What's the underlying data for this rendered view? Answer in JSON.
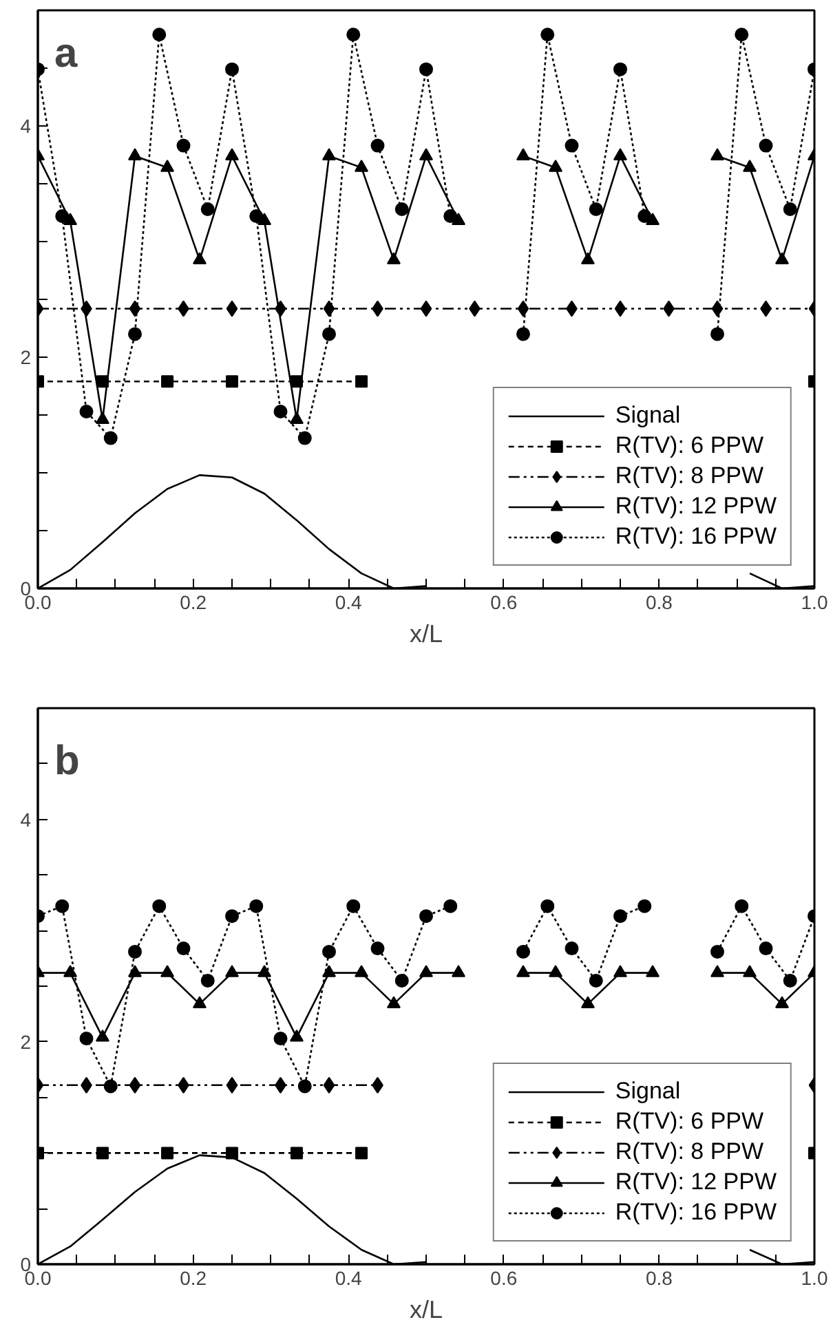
{
  "chart_data": [
    {
      "type": "line",
      "annotations": [
        "a"
      ],
      "xlabel": "x/L",
      "xlim": [
        0,
        1
      ],
      "ylim": [
        0,
        5
      ],
      "xticks": [
        {
          "value": 0.0,
          "label": "0.0"
        },
        {
          "value": 0.05,
          "label": null
        },
        {
          "value": 0.1,
          "label": null
        },
        {
          "value": 0.15,
          "label": null
        },
        {
          "value": 0.2,
          "label": "0.2"
        },
        {
          "value": 0.25,
          "label": null
        },
        {
          "value": 0.3,
          "label": null
        },
        {
          "value": 0.35,
          "label": null
        },
        {
          "value": 0.4,
          "label": "0.4"
        },
        {
          "value": 0.45,
          "label": null
        },
        {
          "value": 0.5,
          "label": null
        },
        {
          "value": 0.55,
          "label": null
        },
        {
          "value": 0.6,
          "label": "0.6"
        },
        {
          "value": 0.65,
          "label": null
        },
        {
          "value": 0.7,
          "label": null
        },
        {
          "value": 0.75,
          "label": null
        },
        {
          "value": 0.8,
          "label": "0.8"
        },
        {
          "value": 0.85,
          "label": null
        },
        {
          "value": 0.9,
          "label": null
        },
        {
          "value": 0.95,
          "label": null
        },
        {
          "value": 1.0,
          "label": "1.0"
        }
      ],
      "yticks": [
        0,
        {
          "value": 0.5,
          "label": null
        },
        {
          "value": 1,
          "label": null
        },
        {
          "value": 1.5,
          "label": null
        },
        2,
        {
          "value": 2.5,
          "label": null
        },
        {
          "value": 3,
          "label": null
        },
        {
          "value": 3.5,
          "label": null
        },
        4,
        {
          "value": 4.5,
          "label": null
        }
      ],
      "grid": false,
      "legend": "bottom right",
      "series": [
        {
          "name": "Signal",
          "color": "#000000",
          "line_style": "solid",
          "marker": "none",
          "x": [
            0,
            0.0417,
            0.0833,
            0.125,
            0.1667,
            0.2083,
            0.25,
            0.2917,
            0.3333,
            0.375,
            0.4167,
            0.4583,
            0.5,
            0.5417,
            0.5833,
            0.625,
            0.6667,
            0.7083,
            0.75,
            0.7917,
            0.8333,
            0.875,
            0.9167,
            0.9583,
            1
          ],
          "values": [
            0,
            0.16,
            0.4,
            0.65,
            0.86,
            0.98,
            0.96,
            0.82,
            0.59,
            0.34,
            0.13,
            0.0,
            0.02,
            null,
            null,
            null,
            null,
            null,
            null,
            null,
            null,
            null,
            0.13,
            0.0,
            0.02
          ]
        },
        {
          "name": "R(TV): 6 PPW",
          "color": "#000000",
          "line_style": "dashed",
          "marker": "square",
          "x": [
            0,
            0.0833,
            0.1667,
            0.25,
            0.3333,
            0.4167,
            0.5,
            0.5833,
            0.6667,
            0.75,
            0.8333,
            0.9167,
            1
          ],
          "values": [
            1.79,
            1.79,
            1.79,
            1.79,
            1.79,
            1.79,
            null,
            null,
            null,
            null,
            null,
            null,
            1.79
          ]
        },
        {
          "name": "R(TV): 8 PPW",
          "color": "#000000",
          "line_style": "dashdot",
          "marker": "diamond",
          "x": [
            0,
            0.0625,
            0.125,
            0.1875,
            0.25,
            0.3125,
            0.375,
            0.4375,
            0.5,
            0.5625,
            0.625,
            0.6875,
            0.75,
            0.8125,
            0.875,
            0.9375,
            1
          ],
          "values": [
            2.42,
            2.42,
            2.42,
            2.42,
            2.42,
            2.42,
            2.42,
            2.42,
            2.42,
            2.42,
            2.42,
            2.42,
            2.42,
            2.42,
            2.42,
            2.42,
            2.42
          ]
        },
        {
          "name": "R(TV): 12 PPW",
          "color": "#000000",
          "line_style": "solid",
          "marker": "triangle",
          "x": [
            0,
            0.0417,
            0.0833,
            0.125,
            0.1667,
            0.2083,
            0.25,
            0.2917,
            0.3333,
            0.375,
            0.4167,
            0.4583,
            0.5,
            0.5417,
            0.5833,
            0.625,
            0.6667,
            0.7083,
            0.75,
            0.7917,
            0.8333,
            0.875,
            0.9167,
            0.9583,
            1
          ],
          "values": [
            3.74,
            3.18,
            1.46,
            3.74,
            3.64,
            2.84,
            3.74,
            3.18,
            1.46,
            3.74,
            3.64,
            2.84,
            3.74,
            3.18,
            null,
            3.74,
            3.64,
            2.84,
            3.74,
            3.18,
            null,
            3.74,
            3.64,
            2.84,
            3.74
          ]
        },
        {
          "name": "R(TV): 16 PPW",
          "color": "#000000",
          "line_style": "dotted",
          "marker": "circle",
          "x": [
            0,
            0.03125,
            0.0625,
            0.09375,
            0.125,
            0.15625,
            0.1875,
            0.21875,
            0.25,
            0.28125,
            0.3125,
            0.34375,
            0.375,
            0.40625,
            0.4375,
            0.46875,
            0.5,
            0.53125,
            0.5625,
            0.59375,
            0.625,
            0.65625,
            0.6875,
            0.71875,
            0.75,
            0.78125,
            0.8125,
            0.84375,
            0.875,
            0.90625,
            0.9375,
            0.96875,
            1
          ],
          "values": [
            4.49,
            3.22,
            1.53,
            1.3,
            2.2,
            4.79,
            3.83,
            3.28,
            4.49,
            3.22,
            1.53,
            1.3,
            2.2,
            4.79,
            3.83,
            3.28,
            4.49,
            3.22,
            null,
            null,
            2.2,
            4.79,
            3.83,
            3.28,
            4.49,
            3.22,
            null,
            null,
            2.2,
            4.79,
            3.83,
            3.28,
            4.49
          ]
        }
      ]
    },
    {
      "type": "line",
      "annotations": [
        "b"
      ],
      "xlabel": "x/L",
      "xlim": [
        0,
        1
      ],
      "ylim": [
        0,
        5
      ],
      "xticks": [
        {
          "value": 0.0,
          "label": "0.0"
        },
        {
          "value": 0.05,
          "label": null
        },
        {
          "value": 0.1,
          "label": null
        },
        {
          "value": 0.15,
          "label": null
        },
        {
          "value": 0.2,
          "label": "0.2"
        },
        {
          "value": 0.25,
          "label": null
        },
        {
          "value": 0.3,
          "label": null
        },
        {
          "value": 0.35,
          "label": null
        },
        {
          "value": 0.4,
          "label": "0.4"
        },
        {
          "value": 0.45,
          "label": null
        },
        {
          "value": 0.5,
          "label": null
        },
        {
          "value": 0.55,
          "label": null
        },
        {
          "value": 0.6,
          "label": "0.6"
        },
        {
          "value": 0.65,
          "label": null
        },
        {
          "value": 0.7,
          "label": null
        },
        {
          "value": 0.75,
          "label": null
        },
        {
          "value": 0.8,
          "label": "0.8"
        },
        {
          "value": 0.85,
          "label": null
        },
        {
          "value": 0.9,
          "label": null
        },
        {
          "value": 0.95,
          "label": null
        },
        {
          "value": 1.0,
          "label": "1.0"
        }
      ],
      "yticks": [
        0,
        {
          "value": 0.5,
          "label": null
        },
        {
          "value": 1,
          "label": null
        },
        {
          "value": 1.5,
          "label": null
        },
        2,
        {
          "value": 2.5,
          "label": null
        },
        {
          "value": 3,
          "label": null
        },
        {
          "value": 3.5,
          "label": null
        },
        4,
        {
          "value": 4.5,
          "label": null
        }
      ],
      "grid": false,
      "legend": "bottom right",
      "series": [
        {
          "name": "Signal",
          "color": "#000000",
          "line_style": "solid",
          "marker": "none",
          "x": [
            0,
            0.0417,
            0.0833,
            0.125,
            0.1667,
            0.2083,
            0.25,
            0.2917,
            0.3333,
            0.375,
            0.4167,
            0.4583,
            0.5,
            0.5417,
            0.5833,
            0.625,
            0.6667,
            0.7083,
            0.75,
            0.7917,
            0.8333,
            0.875,
            0.9167,
            0.9583,
            1
          ],
          "values": [
            0,
            0.16,
            0.4,
            0.65,
            0.86,
            0.98,
            0.96,
            0.82,
            0.59,
            0.34,
            0.13,
            0.0,
            0.02,
            null,
            null,
            null,
            null,
            null,
            null,
            null,
            null,
            null,
            0.13,
            0.0,
            0.02
          ]
        },
        {
          "name": "R(TV): 6 PPW",
          "color": "#000000",
          "line_style": "dashed",
          "marker": "square",
          "x": [
            0,
            0.0833,
            0.1667,
            0.25,
            0.3333,
            0.4167,
            0.5,
            0.5833,
            0.6667,
            0.75,
            0.8333,
            0.9167,
            1
          ],
          "values": [
            1.0,
            1.0,
            1.0,
            1.0,
            1.0,
            1.0,
            null,
            null,
            null,
            null,
            null,
            null,
            1.0
          ]
        },
        {
          "name": "R(TV): 8 PPW",
          "color": "#000000",
          "line_style": "dashdot",
          "marker": "diamond",
          "x": [
            0,
            0.0625,
            0.125,
            0.1875,
            0.25,
            0.3125,
            0.375,
            0.4375,
            0.5,
            0.5625,
            0.625,
            0.6875,
            0.75,
            0.8125,
            0.875,
            0.9375,
            1
          ],
          "values": [
            1.61,
            1.61,
            1.61,
            1.61,
            1.61,
            1.61,
            1.61,
            1.61,
            null,
            null,
            null,
            null,
            null,
            null,
            null,
            null,
            1.61
          ]
        },
        {
          "name": "R(TV): 12 PPW",
          "color": "#000000",
          "line_style": "solid",
          "marker": "triangle",
          "x": [
            0,
            0.0417,
            0.0833,
            0.125,
            0.1667,
            0.2083,
            0.25,
            0.2917,
            0.3333,
            0.375,
            0.4167,
            0.4583,
            0.5,
            0.5417,
            0.5833,
            0.625,
            0.6667,
            0.7083,
            0.75,
            0.7917,
            0.8333,
            0.875,
            0.9167,
            0.9583,
            1
          ],
          "values": [
            2.62,
            2.62,
            2.04,
            2.62,
            2.62,
            2.34,
            2.62,
            2.62,
            2.04,
            2.62,
            2.62,
            2.34,
            2.62,
            2.62,
            null,
            2.62,
            2.62,
            2.34,
            2.62,
            2.62,
            null,
            2.62,
            2.62,
            2.34,
            2.62
          ]
        },
        {
          "name": "R(TV): 16 PPW",
          "color": "#000000",
          "line_style": "dotted",
          "marker": "circle",
          "x": [
            0,
            0.03125,
            0.0625,
            0.09375,
            0.125,
            0.15625,
            0.1875,
            0.21875,
            0.25,
            0.28125,
            0.3125,
            0.34375,
            0.375,
            0.40625,
            0.4375,
            0.46875,
            0.5,
            0.53125,
            0.5625,
            0.59375,
            0.625,
            0.65625,
            0.6875,
            0.71875,
            0.75,
            0.78125,
            0.8125,
            0.84375,
            0.875,
            0.90625,
            0.9375,
            0.96875,
            1
          ],
          "values": [
            3.13,
            3.22,
            2.03,
            1.6,
            2.81,
            3.22,
            2.84,
            2.55,
            3.13,
            3.22,
            2.03,
            1.6,
            2.81,
            3.22,
            2.84,
            2.55,
            3.13,
            3.22,
            null,
            null,
            2.81,
            3.22,
            2.84,
            2.55,
            3.13,
            3.22,
            null,
            null,
            2.81,
            3.22,
            2.84,
            2.55,
            3.13
          ]
        }
      ]
    }
  ]
}
